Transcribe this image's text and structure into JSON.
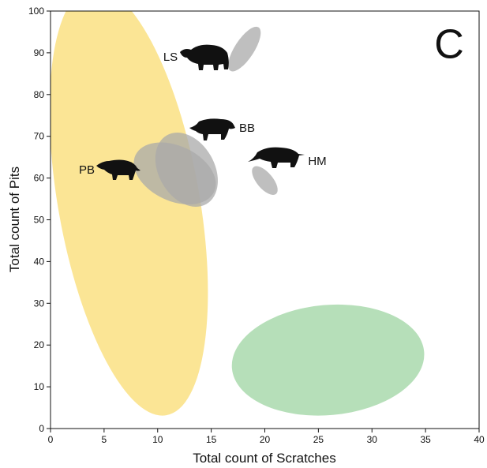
{
  "chart_data": {
    "type": "ellipse",
    "panel_label": "C",
    "x_label": "Total count of Scratches",
    "y_label": "Total count of Pits",
    "xlim": [
      0,
      40
    ],
    "ylim": [
      0,
      100
    ],
    "xticks": [
      0,
      5,
      10,
      15,
      20,
      25,
      30,
      35,
      40
    ],
    "yticks": [
      0,
      10,
      20,
      30,
      40,
      50,
      60,
      70,
      80,
      90,
      100
    ],
    "groups": [
      "LS",
      "BB",
      "PB",
      "HM"
    ],
    "ellipses": [
      {
        "cx": 7.3,
        "cy": 54.4,
        "rx": 6.6,
        "ry": 52,
        "angle": -10,
        "color": "#f9dc72"
      },
      {
        "cx": 25.9,
        "cy": 16.4,
        "rx": 9.0,
        "ry": 13.2,
        "angle": -5,
        "color": "#9ed4a2"
      },
      {
        "cx": 18.1,
        "cy": 90.9,
        "rx": 0.9,
        "ry": 6.2,
        "angle": 33,
        "color": "#aaaaaa"
      },
      {
        "cx": 11.6,
        "cy": 61.1,
        "rx": 4.05,
        "ry": 6.6,
        "angle": 25,
        "color": "#aaaaaa"
      },
      {
        "cx": 12.7,
        "cy": 62.0,
        "rx": 2.6,
        "ry": 9.5,
        "angle": -30,
        "color": "#aaaaaa"
      },
      {
        "cx": 20.0,
        "cy": 59.4,
        "rx": 0.75,
        "ry": 4.2,
        "angle": -40,
        "color": "#aaaaaa"
      }
    ]
  }
}
